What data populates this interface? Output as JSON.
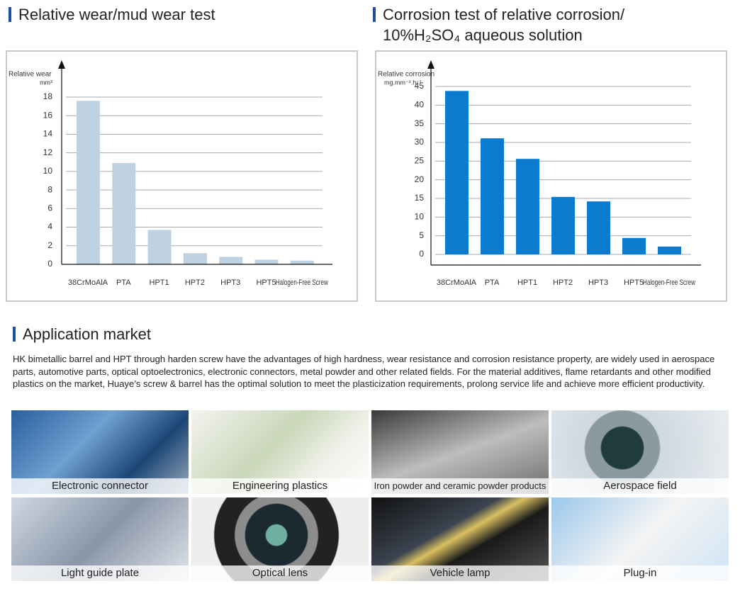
{
  "chart_data": [
    {
      "type": "bar",
      "title": [
        "Relative wear/mud wear test"
      ],
      "ylabel": "Relative wear",
      "yunit": "mm³",
      "categories": [
        "38CrMoAlA",
        "PTA",
        "HPT1",
        "HPT2",
        "HPT3",
        "HPT5",
        "Halogen-Free Screw"
      ],
      "values": [
        17.6,
        10.9,
        3.7,
        1.2,
        0.8,
        0.5,
        0.4
      ],
      "color": "#bed2e1",
      "ylim": [
        0,
        18
      ],
      "yticks": [
        0,
        2,
        4,
        6,
        8,
        10,
        12,
        14,
        16,
        18
      ],
      "grid": true
    },
    {
      "type": "bar",
      "title": [
        "Corrosion test of relative corrosion/",
        "10%H₂SO₄ aqueous solution"
      ],
      "ylabel": "Relative corrosion",
      "yunit": "mg.mm⁻².h⁻¹",
      "categories": [
        "38CrMoAlA",
        "PTA",
        "HPT1",
        "HPT2",
        "HPT3",
        "HPT5",
        "Halogen-Free Screw"
      ],
      "values": [
        43.8,
        31.1,
        25.6,
        15.4,
        14.2,
        4.4,
        2.1
      ],
      "color": "#0b7bd0",
      "ylim": [
        0,
        45
      ],
      "yticks": [
        0,
        5,
        10,
        15,
        20,
        25,
        30,
        35,
        40,
        45
      ],
      "grid": true
    }
  ],
  "section": {
    "title": "Application market",
    "text": "HK bimetallic barrel and HPT through harden screw have the advantages of high hardness, wear resistance and corrosion resistance property, are widely used in aerospace parts, automotive parts, optical optoelectronics, electronic connectors, metal powder and other related fields. For the material additives, flame retardants and other modified plastics on the market, Huaye’s screw & barrel has the optimal solution to meet the plasticization requirements, prolong service life and achieve more efficient productivity."
  },
  "tiles": [
    "Electronic connector",
    "Engineering plastics",
    "Iron powder and ceramic powder products",
    "Aerospace field",
    "Light guide plate",
    "Optical lens",
    "Vehicle lamp",
    "Plug-in"
  ]
}
